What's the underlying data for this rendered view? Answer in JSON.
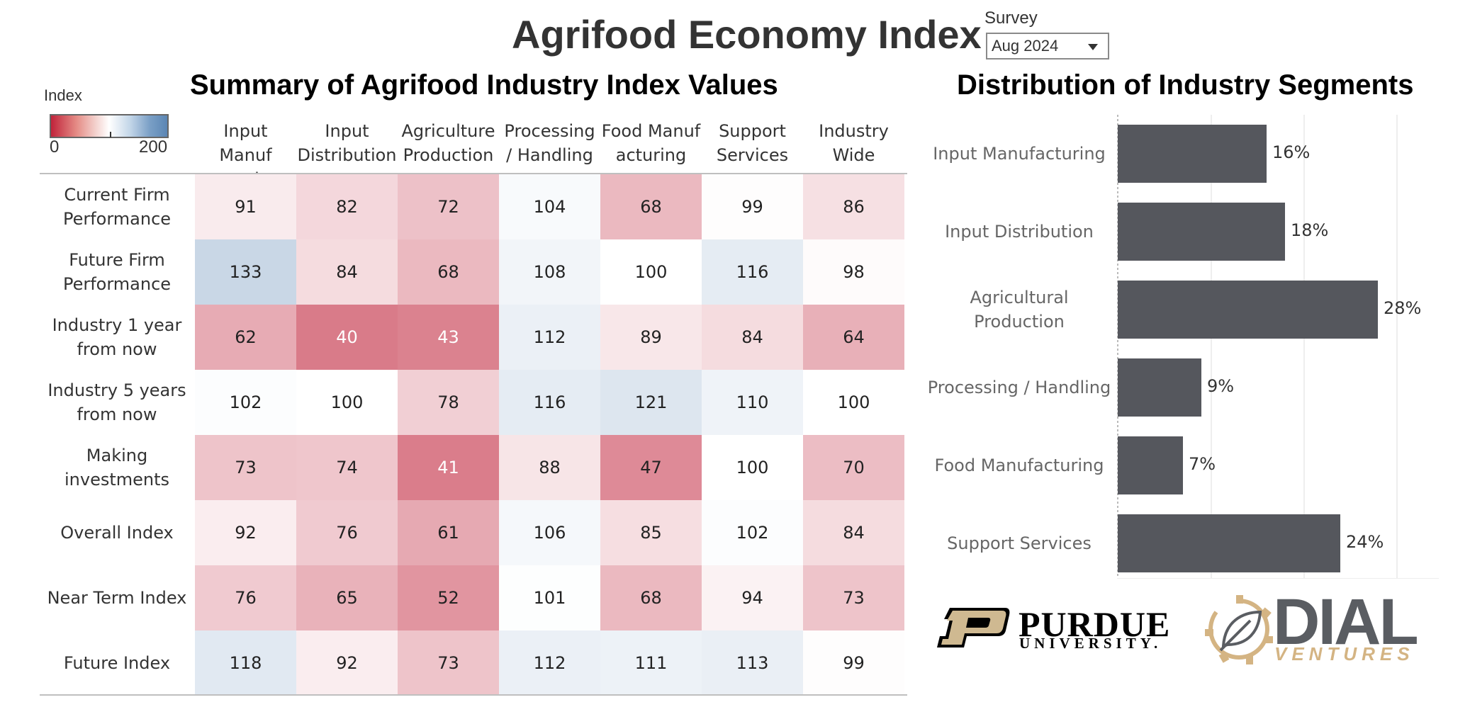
{
  "header": {
    "title": "Agrifood Economy Index",
    "survey_label": "Survey",
    "survey_value": "Aug 2024"
  },
  "legend": {
    "title": "Index",
    "min_label": "0",
    "max_label": "200",
    "colors": {
      "low": "#c0233a",
      "mid": "#ffffff",
      "high": "#5b86b4"
    }
  },
  "colors": {
    "bar": "#55575d",
    "purdue_gold": "#cfb991",
    "dial_gray": "#5a5d62",
    "ventures_gold": "#d4b483"
  },
  "logos": {
    "purdue": {
      "name": "PURDUE",
      "sub": "UNIVERSITY."
    },
    "dial": {
      "name": "DIAL",
      "sub": "VENTURES",
      "icon": "leaf-gear-icon"
    }
  },
  "chart_data": [
    {
      "type": "heatmap",
      "title": "Summary of Agrifood Industry Index Values",
      "columns": [
        [
          "Input Manuf",
          "acturing"
        ],
        [
          "Input",
          "Distribution"
        ],
        [
          "Agriculture",
          "Production"
        ],
        [
          "Processing",
          "/ Handling"
        ],
        [
          "Food Manuf",
          "acturing"
        ],
        [
          "Support",
          "Services"
        ],
        [
          "Industry",
          "Wide"
        ]
      ],
      "rows": [
        [
          "Current Firm",
          "Performance"
        ],
        [
          "Future Firm",
          "Performance"
        ],
        [
          "Industry 1 year",
          "from now"
        ],
        [
          "Industry 5 years",
          "from now"
        ],
        [
          "Making",
          "investments"
        ],
        [
          "Overall Index"
        ],
        [
          "Near Term Index"
        ],
        [
          "Future Index"
        ]
      ],
      "values": [
        [
          91,
          82,
          72,
          104,
          68,
          99,
          86
        ],
        [
          133,
          84,
          68,
          108,
          100,
          116,
          98
        ],
        [
          62,
          40,
          43,
          112,
          89,
          84,
          64
        ],
        [
          102,
          100,
          78,
          116,
          121,
          110,
          100
        ],
        [
          73,
          74,
          41,
          88,
          47,
          100,
          70
        ],
        [
          92,
          76,
          61,
          106,
          85,
          102,
          84
        ],
        [
          76,
          65,
          52,
          101,
          68,
          94,
          73
        ],
        [
          118,
          92,
          73,
          112,
          111,
          113,
          99
        ]
      ],
      "color_scale": [
        0,
        200
      ],
      "legend_title": "Index"
    },
    {
      "type": "bar",
      "orientation": "horizontal",
      "title": "Distribution of Industry Segments",
      "categories": [
        [
          "Input Manufacturing"
        ],
        [
          "Input Distribution"
        ],
        [
          "Agricultural",
          "Production"
        ],
        [
          "Processing / Handling"
        ],
        [
          "Food Manufacturing"
        ],
        [
          "Support Services"
        ]
      ],
      "values": [
        16,
        18,
        28,
        9,
        7,
        24
      ],
      "value_labels": [
        "16%",
        "18%",
        "28%",
        "9%",
        "7%",
        "24%"
      ],
      "xlim": [
        0,
        30
      ],
      "grid": true
    }
  ]
}
